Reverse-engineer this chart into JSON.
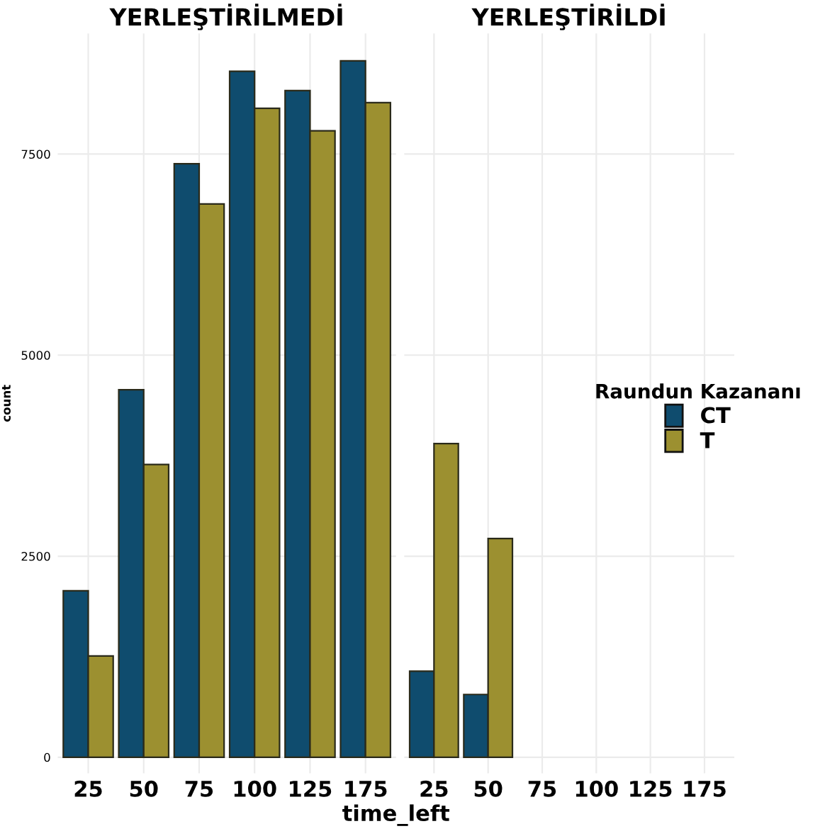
{
  "chart_data": [
    {
      "type": "bar",
      "title": "YERLEŞTİRİLMEDİ",
      "xlabel": "time_left",
      "ylabel": "count",
      "categories": [
        "25",
        "50",
        "75",
        "100",
        "125",
        "175"
      ],
      "series": [
        {
          "name": "CT",
          "color": "#0f4c6e",
          "values": [
            2070,
            4570,
            7380,
            8530,
            8290,
            8660
          ]
        },
        {
          "name": "T",
          "color": "#9c9030",
          "values": [
            1260,
            3640,
            6880,
            8070,
            7790,
            8140
          ]
        }
      ],
      "ylim": [
        -200,
        9000
      ],
      "yticks": [
        0,
        2500,
        5000,
        7500
      ],
      "grid": true,
      "legend_title": "Raundun Kazananı",
      "legend": "right"
    },
    {
      "type": "bar",
      "title": "YERLEŞTİRİLDİ",
      "categories": [
        "25",
        "50",
        "75",
        "100",
        "125",
        "175"
      ],
      "series": [
        {
          "color": "#0f4c6e",
          "values": [
            1070,
            780,
            null,
            null,
            null,
            null
          ]
        },
        {
          "color": "#9c9030",
          "values": [
            3900,
            2720,
            null,
            null,
            null,
            null
          ]
        }
      ],
      "ylim": [
        -200,
        9000
      ],
      "tick_labels": "x",
      "grid": true
    }
  ]
}
